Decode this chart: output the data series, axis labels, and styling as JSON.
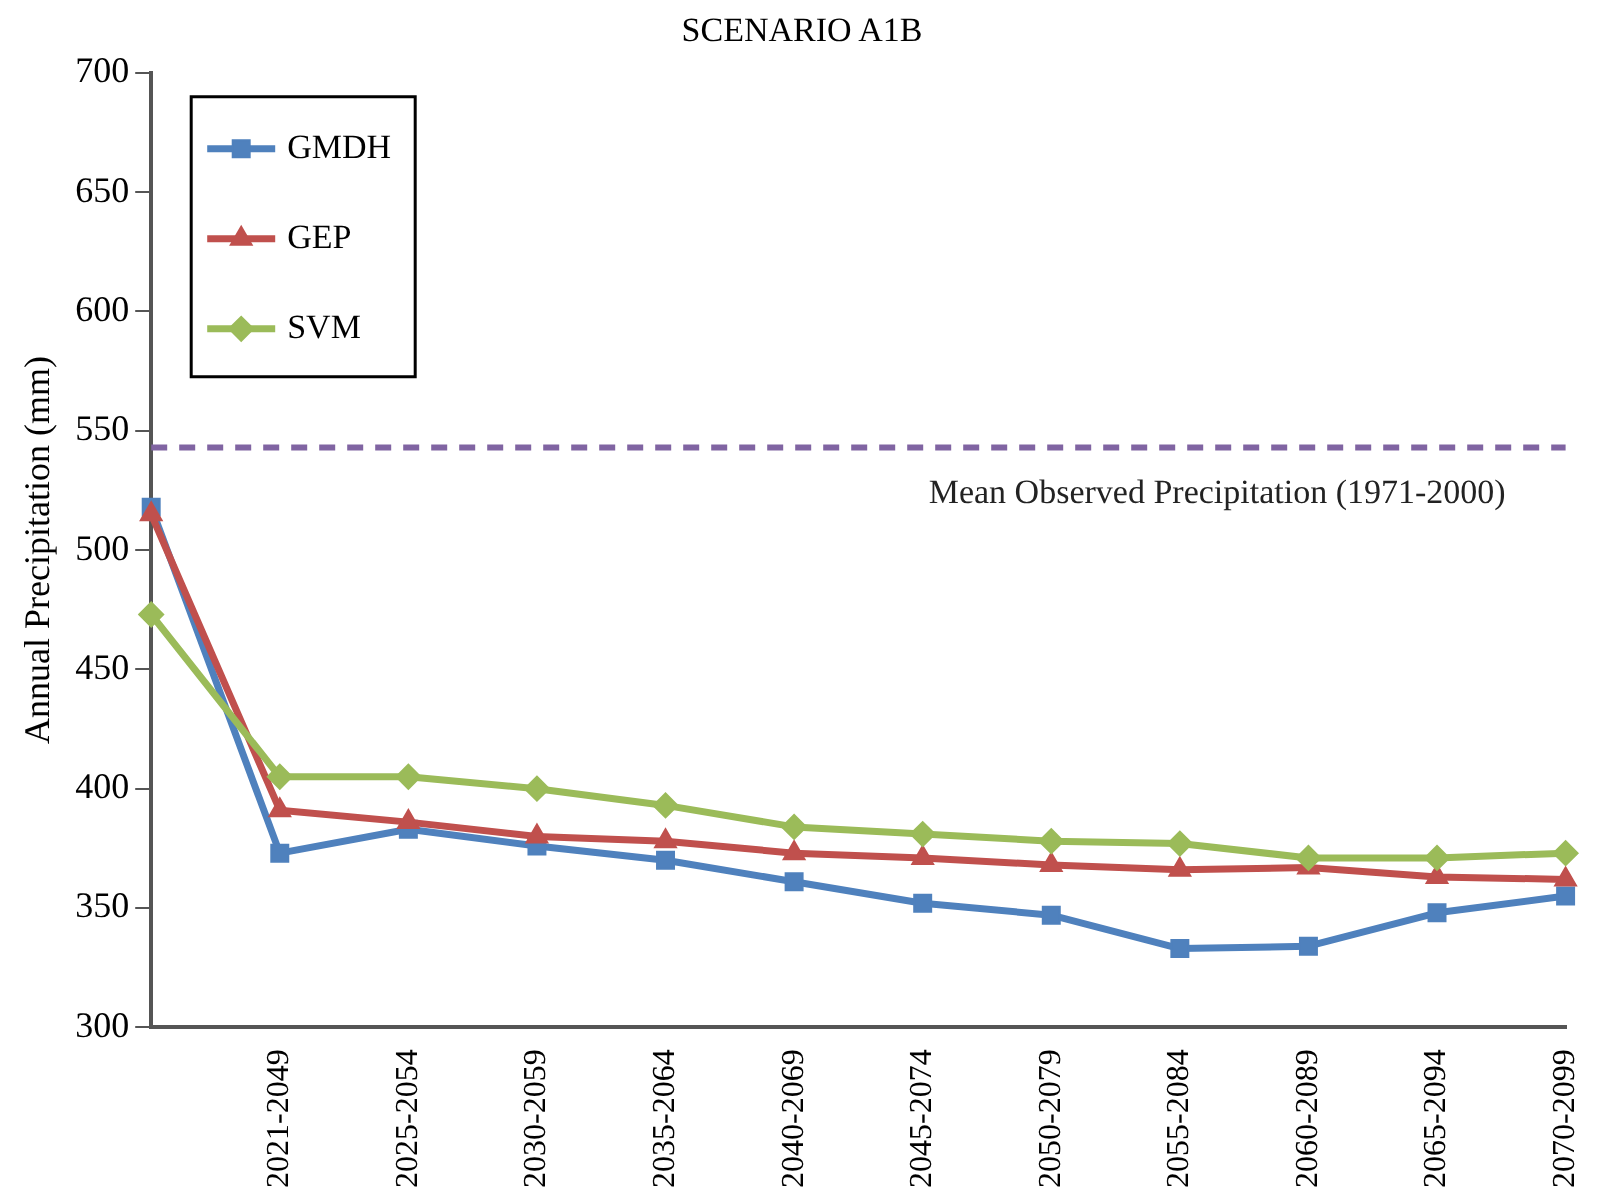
{
  "chart_data": {
    "type": "line",
    "title": "SCENARIO A1B",
    "ylabel": "Annual Precipitation (mm)",
    "categories": [
      null,
      "2021-2049",
      "2025-2054",
      "2030-2059",
      "2035-2064",
      "2040-2069",
      "2045-2074",
      "2050-2079",
      "2055-2084",
      "2060-2089",
      "2065-2094",
      "2070-2099"
    ],
    "series": [
      {
        "name": "GMDH",
        "color": "#4f81bd",
        "marker": "square",
        "values": [
          518,
          373,
          383,
          376,
          370,
          361,
          352,
          347,
          333,
          334,
          348,
          355
        ]
      },
      {
        "name": "GEP",
        "color": "#c0504d",
        "marker": "triangle",
        "values": [
          515,
          391,
          386,
          380,
          378,
          373,
          371,
          368,
          366,
          367,
          363,
          362
        ]
      },
      {
        "name": "SVM",
        "color": "#9bbb59",
        "marker": "diamond",
        "values": [
          473,
          405,
          405,
          400,
          393,
          384,
          381,
          378,
          377,
          371,
          371,
          373
        ]
      }
    ],
    "ylim": [
      300,
      700
    ],
    "yticks": [
      300,
      350,
      400,
      450,
      500,
      550,
      600,
      650,
      700
    ],
    "grid": false,
    "legend": "top left",
    "line_style": "solid",
    "ref_lines": [
      {
        "axis": "y",
        "value": 543,
        "label": "Mean Observed Precipitation (1971-2000)",
        "color": "#8064a2",
        "line_style": "dashed"
      }
    ]
  }
}
